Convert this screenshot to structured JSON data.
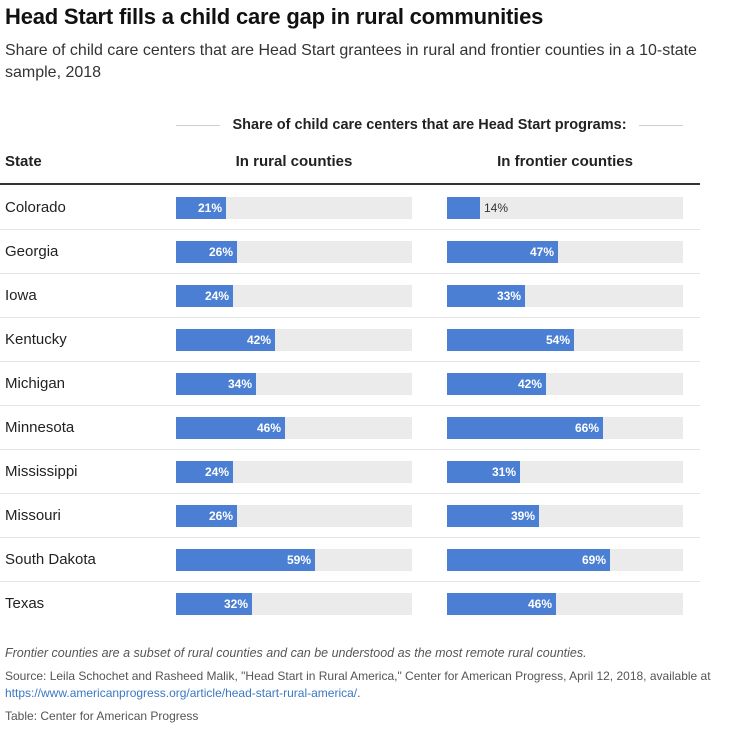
{
  "chart_data": {
    "type": "table",
    "title": "Head Start fills a child care gap in rural communities",
    "subtitle": "Share of child care centers that are Head Start grantees in rural and frontier counties in a 10-state sample, 2018",
    "group_header": "Share of child care centers that are Head Start programs:",
    "columns": {
      "state": "State",
      "rural": "In rural counties",
      "frontier": "In frontier counties"
    },
    "value_range": [
      0,
      100
    ],
    "unit": "%",
    "rows": [
      {
        "state": "Colorado",
        "rural": 21,
        "frontier": 14
      },
      {
        "state": "Georgia",
        "rural": 26,
        "frontier": 47
      },
      {
        "state": "Iowa",
        "rural": 24,
        "frontier": 33
      },
      {
        "state": "Kentucky",
        "rural": 42,
        "frontier": 54
      },
      {
        "state": "Michigan",
        "rural": 34,
        "frontier": 42
      },
      {
        "state": "Minnesota",
        "rural": 46,
        "frontier": 66
      },
      {
        "state": "Mississippi",
        "rural": 24,
        "frontier": 31
      },
      {
        "state": "Missouri",
        "rural": 26,
        "frontier": 39
      },
      {
        "state": "South Dakota",
        "rural": 59,
        "frontier": 69
      },
      {
        "state": "Texas",
        "rural": 32,
        "frontier": 46
      }
    ]
  },
  "footnote": "Frontier counties are a subset of rural counties and can be understood as the most remote rural counties.",
  "source": {
    "text": "Source: Leila Schochet and Rasheed Malik, \"Head Start in Rural America,\" Center for American Progress, April 12, 2018, available at",
    "link": "https://www.americanprogress.org/article/head-start-rural-america/",
    "tail": "."
  },
  "credit": "Table: Center for American Progress",
  "colors": {
    "bar": "#4a7fd4",
    "track": "#ebebeb",
    "label_inside": "#ffffff",
    "label_outside": "#333333"
  }
}
